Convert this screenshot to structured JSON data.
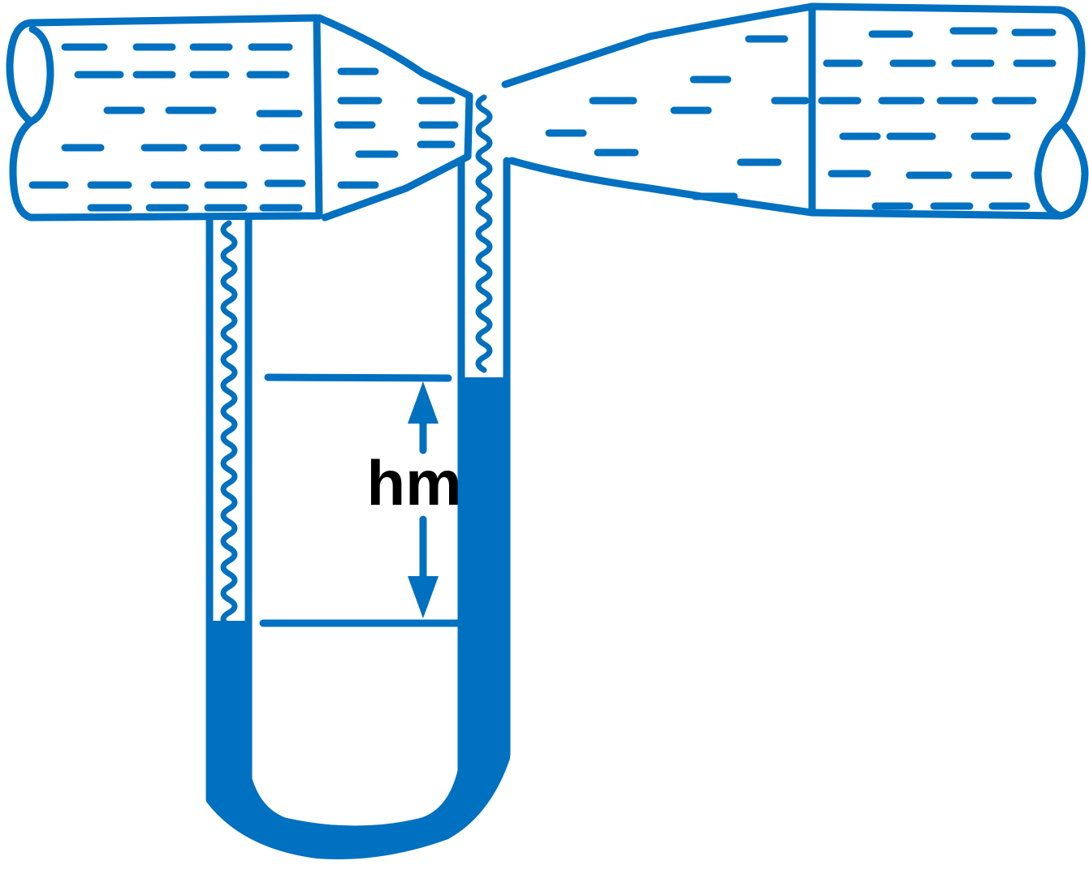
{
  "diagram": {
    "labels": {
      "head_difference": "hm"
    },
    "colors": {
      "line": "#0070C0",
      "background": "#FFFFFF",
      "text": "#000000"
    },
    "parts": [
      "inlet-pipe",
      "converging-cone",
      "throat",
      "diverging-cone",
      "outlet-pipe",
      "u-tube-manometer",
      "manometric-fluid",
      "head-difference-arrow"
    ]
  }
}
